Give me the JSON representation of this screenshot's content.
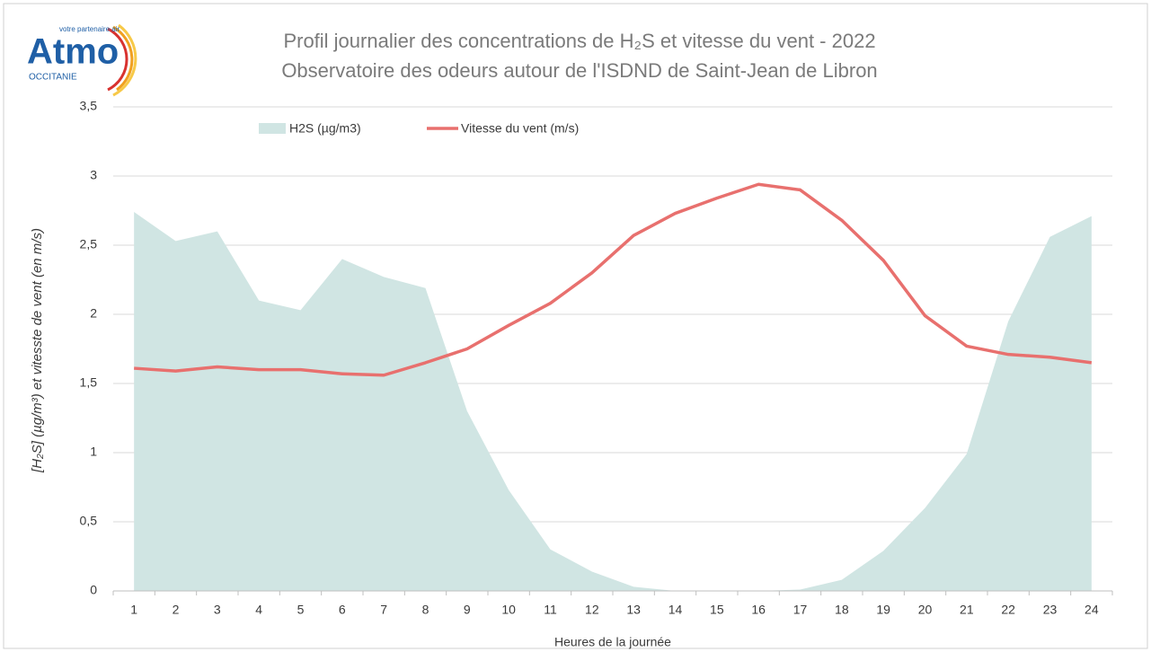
{
  "logo": {
    "name": "Atmo",
    "tagline": "votre partenaire air",
    "region": "OCCITANIE"
  },
  "chart_data": {
    "type": "combo",
    "title": "Profil journalier des concentrations de H₂S et vitesse du vent - 2022",
    "subtitle": "Observatoire des odeurs autour de l'ISDND de Saint-Jean de Libron",
    "x_label": "Heures de la journée",
    "y_label": "[H₂S] (µg/m³)  et  vitesste de vent (en m/s)",
    "categories": [
      "1",
      "2",
      "3",
      "4",
      "5",
      "6",
      "7",
      "8",
      "9",
      "10",
      "11",
      "12",
      "13",
      "14",
      "15",
      "16",
      "17",
      "18",
      "19",
      "20",
      "21",
      "22",
      "23",
      "24"
    ],
    "series": [
      {
        "name": "H2S (µg/m3)",
        "kind": "area",
        "color": "#d0e5e3",
        "values": [
          2.74,
          2.53,
          2.6,
          2.1,
          2.03,
          2.4,
          2.27,
          2.19,
          1.3,
          0.73,
          0.3,
          0.14,
          0.03,
          0,
          0,
          0,
          0.01,
          0.08,
          0.29,
          0.6,
          0.99,
          1.95,
          2.56,
          2.71
        ]
      },
      {
        "name": "Vitesse du vent (m/s)",
        "kind": "line",
        "color": "#e8706e",
        "values": [
          1.61,
          1.59,
          1.62,
          1.6,
          1.6,
          1.57,
          1.56,
          1.65,
          1.75,
          1.92,
          2.08,
          2.3,
          2.57,
          2.73,
          2.84,
          2.94,
          2.9,
          2.68,
          2.39,
          1.99,
          1.77,
          1.71,
          1.69,
          1.65
        ]
      }
    ],
    "ylim": [
      0,
      3.5
    ],
    "yticks": [
      0,
      {
        "value": 0.5,
        "label": "0,5"
      },
      1,
      {
        "value": 1.5,
        "label": "1,5"
      },
      2,
      {
        "value": 2.5,
        "label": "2,5"
      },
      3,
      {
        "value": 3.5,
        "label": "3,5"
      }
    ],
    "grid": true,
    "legend": "top"
  }
}
